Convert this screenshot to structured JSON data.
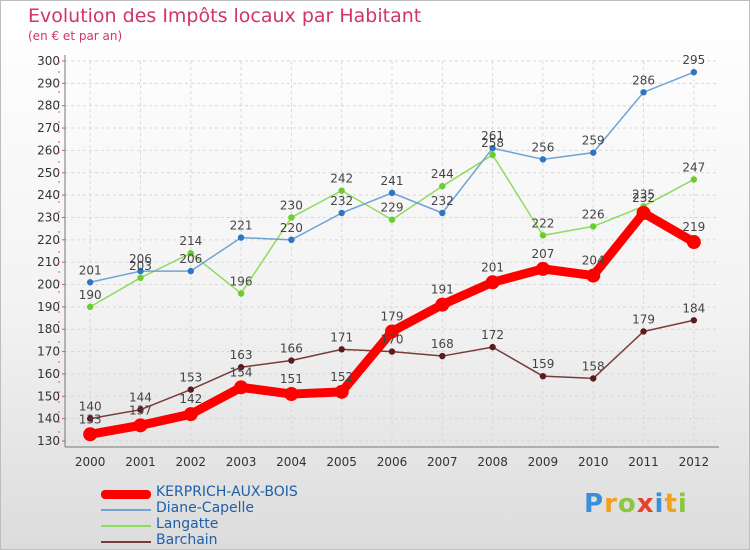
{
  "title": "Evolution des Impôts locaux par Habitant",
  "subtitle": "(en € et par an)",
  "logo": "Proxiti",
  "chart_data": {
    "type": "line",
    "title": "Evolution des Impôts locaux par Habitant",
    "ylabel": "(en € et par an)",
    "xlabel": "",
    "ylim": [
      130,
      300
    ],
    "yticks": [
      130,
      140,
      150,
      160,
      170,
      180,
      190,
      200,
      210,
      220,
      230,
      240,
      250,
      260,
      270,
      280,
      290,
      300
    ],
    "categories": [
      "2000",
      "2001",
      "2002",
      "2003",
      "2004",
      "2005",
      "2006",
      "2007",
      "2008",
      "2009",
      "2010",
      "2011",
      "2012"
    ],
    "grid": true,
    "series": [
      {
        "name": "KERPRICH-AUX-BOIS",
        "color": "#ff0000",
        "marker": "#ff0000",
        "values": [
          133,
          137,
          142,
          154,
          151,
          152,
          179,
          191,
          201,
          207,
          204,
          232,
          219
        ]
      },
      {
        "name": "Diane-Capelle",
        "color": "#6fa3d6",
        "marker": "#2e75c4",
        "values": [
          201,
          206,
          206,
          221,
          220,
          232,
          241,
          232,
          261,
          256,
          259,
          286,
          295
        ]
      },
      {
        "name": "Langatte",
        "color": "#8edb5e",
        "marker": "#6bcc2d",
        "values": [
          190,
          203,
          214,
          196,
          230,
          242,
          229,
          244,
          258,
          222,
          226,
          235,
          247
        ]
      },
      {
        "name": "Barchain",
        "color": "#7a3b3b",
        "marker": "#5c1a1a",
        "values": [
          140,
          144,
          153,
          163,
          166,
          171,
          170,
          168,
          172,
          159,
          158,
          179,
          184
        ]
      }
    ]
  }
}
